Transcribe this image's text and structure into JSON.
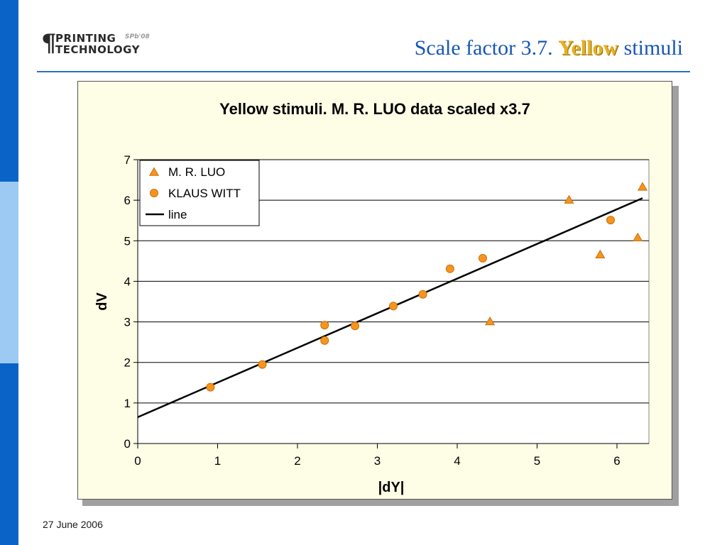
{
  "logo": {
    "line1": "PRINTING",
    "line2": "TECHNOLOGY",
    "tag": "SPb'08",
    "pilcrow": "¶"
  },
  "slide": {
    "title_pre": "Scale factor 3.7. ",
    "title_highlight": "Yellow",
    "title_post": " stimuli",
    "date": "27 June 2006"
  },
  "colors": {
    "accent": "#1656b8",
    "marker_fill": "#f7941d",
    "marker_stroke": "#c8700a",
    "plot_bg": "#ffffff",
    "chart_bg": "#fefde6",
    "highlight": "#e8b021"
  },
  "chart_data": {
    "type": "scatter",
    "title": "Yellow stimuli. M. R. LUO data scaled x3.7",
    "xlabel": "|dY|",
    "ylabel": "dV",
    "xlim": [
      0,
      6.4
    ],
    "ylim": [
      0,
      7
    ],
    "xticks": [
      0,
      1,
      2,
      3,
      4,
      5,
      6
    ],
    "yticks": [
      0,
      1,
      2,
      3,
      4,
      5,
      6,
      7
    ],
    "grid": "horizontal",
    "legend_position": "top-left",
    "series": [
      {
        "name": "M. R. LUO",
        "marker": "triangle",
        "points": [
          [
            4.41,
            3.0
          ],
          [
            5.4,
            6.0
          ],
          [
            5.79,
            4.65
          ],
          [
            6.26,
            5.07
          ],
          [
            6.32,
            6.32
          ]
        ]
      },
      {
        "name": "KLAUS WITT",
        "marker": "circle",
        "points": [
          [
            0.91,
            1.39
          ],
          [
            1.56,
            1.95
          ],
          [
            2.34,
            2.92
          ],
          [
            2.34,
            2.54
          ],
          [
            2.72,
            2.9
          ],
          [
            3.2,
            3.39
          ],
          [
            3.57,
            3.68
          ],
          [
            3.91,
            4.31
          ],
          [
            4.32,
            4.57
          ],
          [
            5.92,
            5.51
          ]
        ]
      },
      {
        "name": "line",
        "marker": "line",
        "points": [
          [
            0,
            0.65
          ],
          [
            6.32,
            6.05
          ]
        ]
      }
    ]
  }
}
